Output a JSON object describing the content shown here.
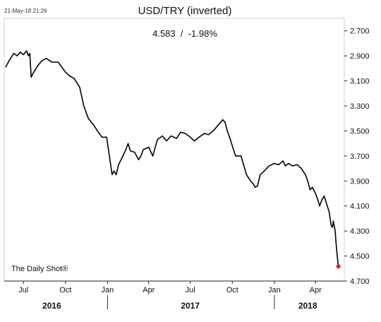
{
  "timestamp": "21-May-18 21:26",
  "brand": "The Daily Shot®",
  "chart_data": {
    "type": "line",
    "title": "USD/TRY (inverted)",
    "subtitle": "4.583  /  -1.98%",
    "y_inverted": true,
    "ylim": [
      2.6,
      4.7
    ],
    "y_ticks": [
      "2.700",
      "2.900",
      "3.100",
      "3.300",
      "3.500",
      "3.700",
      "3.900",
      "4.100",
      "4.300",
      "4.500",
      "4.700"
    ],
    "x_ticks": [
      {
        "date": "2016-07-01",
        "label": "Jul"
      },
      {
        "date": "2016-10-01",
        "label": "Oct"
      },
      {
        "date": "2017-01-01",
        "label": "Jan"
      },
      {
        "date": "2017-04-01",
        "label": "Apr"
      },
      {
        "date": "2017-07-01",
        "label": "Jul"
      },
      {
        "date": "2017-10-01",
        "label": "Oct"
      },
      {
        "date": "2018-01-01",
        "label": "Jan"
      },
      {
        "date": "2018-04-01",
        "label": "Apr"
      }
    ],
    "years": [
      {
        "label": "2016",
        "center": "2016-09-01"
      },
      {
        "label": "2017",
        "center": "2017-07-01"
      },
      {
        "label": "2018",
        "center": "2018-03-15"
      }
    ],
    "year_separators": [
      "2017-01-01",
      "2018-01-01"
    ],
    "xlim": [
      "2016-05-20",
      "2018-06-03"
    ],
    "series": [
      {
        "color": "#000000",
        "points": [
          [
            "2016-05-23",
            2.99
          ],
          [
            "2016-06-01",
            2.93
          ],
          [
            "2016-06-10",
            2.88
          ],
          [
            "2016-06-17",
            2.9
          ],
          [
            "2016-06-24",
            2.87
          ],
          [
            "2016-07-01",
            2.89
          ],
          [
            "2016-07-08",
            2.86
          ],
          [
            "2016-07-12",
            2.9
          ],
          [
            "2016-07-15",
            2.88
          ],
          [
            "2016-07-18",
            3.07
          ],
          [
            "2016-07-22",
            3.04
          ],
          [
            "2016-08-01",
            2.98
          ],
          [
            "2016-08-10",
            2.94
          ],
          [
            "2016-08-20",
            2.92
          ],
          [
            "2016-09-01",
            2.95
          ],
          [
            "2016-09-15",
            2.95
          ],
          [
            "2016-10-01",
            3.03
          ],
          [
            "2016-10-10",
            3.06
          ],
          [
            "2016-10-20",
            3.08
          ],
          [
            "2016-11-01",
            3.15
          ],
          [
            "2016-11-10",
            3.3
          ],
          [
            "2016-11-20",
            3.4
          ],
          [
            "2016-12-01",
            3.45
          ],
          [
            "2016-12-10",
            3.5
          ],
          [
            "2016-12-20",
            3.55
          ],
          [
            "2016-12-30",
            3.55
          ],
          [
            "2017-01-05",
            3.7
          ],
          [
            "2017-01-11",
            3.85
          ],
          [
            "2017-01-15",
            3.82
          ],
          [
            "2017-01-20",
            3.85
          ],
          [
            "2017-01-25",
            3.77
          ],
          [
            "2017-02-01",
            3.72
          ],
          [
            "2017-02-10",
            3.65
          ],
          [
            "2017-02-15",
            3.6
          ],
          [
            "2017-02-20",
            3.66
          ],
          [
            "2017-03-01",
            3.67
          ],
          [
            "2017-03-10",
            3.73
          ],
          [
            "2017-03-15",
            3.7
          ],
          [
            "2017-03-20",
            3.65
          ],
          [
            "2017-04-01",
            3.63
          ],
          [
            "2017-04-10",
            3.7
          ],
          [
            "2017-04-20",
            3.57
          ],
          [
            "2017-05-01",
            3.54
          ],
          [
            "2017-05-10",
            3.58
          ],
          [
            "2017-05-20",
            3.54
          ],
          [
            "2017-06-01",
            3.56
          ],
          [
            "2017-06-10",
            3.51
          ],
          [
            "2017-06-20",
            3.52
          ],
          [
            "2017-07-01",
            3.55
          ],
          [
            "2017-07-10",
            3.58
          ],
          [
            "2017-07-20",
            3.55
          ],
          [
            "2017-08-01",
            3.52
          ],
          [
            "2017-08-10",
            3.53
          ],
          [
            "2017-08-20",
            3.5
          ],
          [
            "2017-09-01",
            3.45
          ],
          [
            "2017-09-10",
            3.41
          ],
          [
            "2017-09-15",
            3.43
          ],
          [
            "2017-09-20",
            3.5
          ],
          [
            "2017-09-25",
            3.55
          ],
          [
            "2017-10-01",
            3.62
          ],
          [
            "2017-10-08",
            3.7
          ],
          [
            "2017-10-20",
            3.7
          ],
          [
            "2017-11-01",
            3.85
          ],
          [
            "2017-11-10",
            3.9
          ],
          [
            "2017-11-15",
            3.92
          ],
          [
            "2017-11-20",
            3.95
          ],
          [
            "2017-11-25",
            3.94
          ],
          [
            "2017-12-01",
            3.85
          ],
          [
            "2017-12-10",
            3.82
          ],
          [
            "2017-12-20",
            3.78
          ],
          [
            "2018-01-01",
            3.76
          ],
          [
            "2018-01-10",
            3.77
          ],
          [
            "2018-01-20",
            3.74
          ],
          [
            "2018-01-25",
            3.78
          ],
          [
            "2018-02-01",
            3.76
          ],
          [
            "2018-02-10",
            3.78
          ],
          [
            "2018-02-20",
            3.77
          ],
          [
            "2018-03-01",
            3.8
          ],
          [
            "2018-03-10",
            3.85
          ],
          [
            "2018-03-15",
            3.9
          ],
          [
            "2018-03-20",
            3.97
          ],
          [
            "2018-03-25",
            3.95
          ],
          [
            "2018-04-01",
            4.0
          ],
          [
            "2018-04-06",
            4.05
          ],
          [
            "2018-04-10",
            4.1
          ],
          [
            "2018-04-15",
            4.05
          ],
          [
            "2018-04-20",
            4.02
          ],
          [
            "2018-04-25",
            4.08
          ],
          [
            "2018-05-01",
            4.15
          ],
          [
            "2018-05-05",
            4.25
          ],
          [
            "2018-05-08",
            4.27
          ],
          [
            "2018-05-10",
            4.22
          ],
          [
            "2018-05-14",
            4.3
          ],
          [
            "2018-05-16",
            4.4
          ],
          [
            "2018-05-18",
            4.48
          ],
          [
            "2018-05-21",
            4.583
          ]
        ]
      }
    ],
    "last_point": {
      "date": "2018-05-21",
      "value": 4.583,
      "color": "#e02020"
    },
    "grid": false
  }
}
